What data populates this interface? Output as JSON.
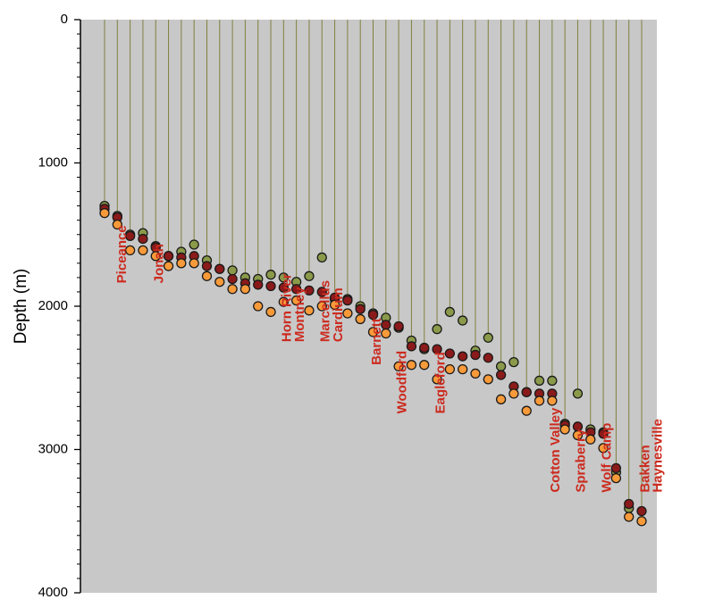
{
  "chart_data": {
    "type": "scatter",
    "title": "",
    "ylabel": "Depth (m)",
    "xlabel": "",
    "ylim": [
      0,
      4000
    ],
    "y_inverted": true,
    "yticks": [
      "0",
      "1000",
      "2000",
      "3000",
      "4000"
    ],
    "grid": false,
    "plot_background": "#c8c8c8",
    "drop_line_color": "#808040",
    "annotation_color": "#cc2a1e",
    "series": [
      {
        "color": "#8a9a4a",
        "points": [
          [
            1,
            1300
          ],
          [
            2,
            1370
          ],
          [
            3,
            1500
          ],
          [
            4,
            1490
          ],
          [
            5,
            1580
          ],
          [
            6,
            1650
          ],
          [
            7,
            1620
          ],
          [
            8,
            1570
          ],
          [
            9,
            1680
          ],
          [
            10,
            1740
          ],
          [
            11,
            1750
          ],
          [
            12,
            1800
          ],
          [
            13,
            1810
          ],
          [
            14,
            1780
          ],
          [
            15,
            1800
          ],
          [
            16,
            1830
          ],
          [
            17,
            1790
          ],
          [
            18,
            1660
          ],
          [
            19,
            1950
          ],
          [
            20,
            1950
          ],
          [
            21,
            2000
          ],
          [
            22,
            2050
          ],
          [
            23,
            2080
          ],
          [
            24,
            2150
          ],
          [
            25,
            2240
          ],
          [
            26,
            2300
          ],
          [
            27,
            2160
          ],
          [
            28,
            2040
          ],
          [
            29,
            2100
          ],
          [
            30,
            2310
          ],
          [
            31,
            2220
          ],
          [
            32,
            2420
          ],
          [
            33,
            2390
          ],
          [
            34,
            2600
          ],
          [
            35,
            2520
          ],
          [
            36,
            2520
          ],
          [
            37,
            2820
          ],
          [
            38,
            2610
          ],
          [
            39,
            2860
          ],
          [
            40,
            2880
          ],
          [
            41,
            3160
          ],
          [
            42,
            3410
          ]
        ]
      },
      {
        "color": "#8b1a1a",
        "points": [
          [
            1,
            1320
          ],
          [
            2,
            1380
          ],
          [
            3,
            1510
          ],
          [
            4,
            1530
          ],
          [
            5,
            1590
          ],
          [
            6,
            1650
          ],
          [
            7,
            1660
          ],
          [
            8,
            1650
          ],
          [
            9,
            1720
          ],
          [
            10,
            1740
          ],
          [
            11,
            1810
          ],
          [
            12,
            1840
          ],
          [
            13,
            1850
          ],
          [
            14,
            1860
          ],
          [
            15,
            1870
          ],
          [
            16,
            1880
          ],
          [
            17,
            1890
          ],
          [
            18,
            1900
          ],
          [
            19,
            1940
          ],
          [
            20,
            1960
          ],
          [
            21,
            2020
          ],
          [
            22,
            2060
          ],
          [
            23,
            2130
          ],
          [
            24,
            2140
          ],
          [
            25,
            2280
          ],
          [
            26,
            2290
          ],
          [
            27,
            2300
          ],
          [
            28,
            2330
          ],
          [
            29,
            2350
          ],
          [
            30,
            2340
          ],
          [
            31,
            2360
          ],
          [
            32,
            2480
          ],
          [
            33,
            2560
          ],
          [
            34,
            2600
          ],
          [
            35,
            2610
          ],
          [
            36,
            2610
          ],
          [
            37,
            2830
          ],
          [
            38,
            2840
          ],
          [
            39,
            2880
          ],
          [
            40,
            2890
          ],
          [
            41,
            3130
          ],
          [
            42,
            3380
          ],
          [
            43,
            3430
          ]
        ]
      },
      {
        "color": "#f79a3a",
        "points": [
          [
            1,
            1350
          ],
          [
            2,
            1430
          ],
          [
            3,
            1610
          ],
          [
            4,
            1610
          ],
          [
            5,
            1650
          ],
          [
            6,
            1720
          ],
          [
            7,
            1700
          ],
          [
            8,
            1700
          ],
          [
            9,
            1790
          ],
          [
            10,
            1830
          ],
          [
            11,
            1880
          ],
          [
            12,
            1880
          ],
          [
            13,
            2000
          ],
          [
            14,
            2040
          ],
          [
            15,
            1970
          ],
          [
            16,
            1960
          ],
          [
            17,
            2030
          ],
          [
            18,
            2000
          ],
          [
            19,
            1990
          ],
          [
            20,
            2050
          ],
          [
            21,
            2090
          ],
          [
            22,
            2180
          ],
          [
            23,
            2190
          ],
          [
            24,
            2420
          ],
          [
            25,
            2410
          ],
          [
            26,
            2410
          ],
          [
            27,
            2510
          ],
          [
            28,
            2440
          ],
          [
            29,
            2440
          ],
          [
            30,
            2470
          ],
          [
            31,
            2510
          ],
          [
            32,
            2650
          ],
          [
            33,
            2610
          ],
          [
            34,
            2730
          ],
          [
            35,
            2660
          ],
          [
            36,
            2660
          ],
          [
            37,
            2860
          ],
          [
            38,
            2900
          ],
          [
            39,
            2930
          ],
          [
            40,
            2990
          ],
          [
            41,
            3200
          ],
          [
            42,
            3470
          ],
          [
            43,
            3500
          ]
        ]
      }
    ],
    "annotations": [
      {
        "text": "Piceance",
        "x": 2.4,
        "y": 1840
      },
      {
        "text": "Jonah",
        "x": 5.3,
        "y": 1840
      },
      {
        "text": "Horn River",
        "x": 15.3,
        "y": 2250
      },
      {
        "text": "Montney",
        "x": 16.3,
        "y": 2250
      },
      {
        "text": "Marcellus",
        "x": 18.3,
        "y": 2250
      },
      {
        "text": "Cardium",
        "x": 19.3,
        "y": 2250
      },
      {
        "text": "Barnett",
        "x": 22.3,
        "y": 2410
      },
      {
        "text": "Woodford",
        "x": 24.3,
        "y": 2750
      },
      {
        "text": "Eagleford",
        "x": 27.3,
        "y": 2750
      },
      {
        "text": "Cotton Valley",
        "x": 36.3,
        "y": 3300
      },
      {
        "text": "Spraberry",
        "x": 38.3,
        "y": 3300
      },
      {
        "text": "Wolf Camp",
        "x": 40.3,
        "y": 3300
      },
      {
        "text": "Bakken",
        "x": 43.3,
        "y": 3300
      },
      {
        "text": "Haynesville",
        "x": 44.3,
        "y": 3300
      }
    ]
  }
}
